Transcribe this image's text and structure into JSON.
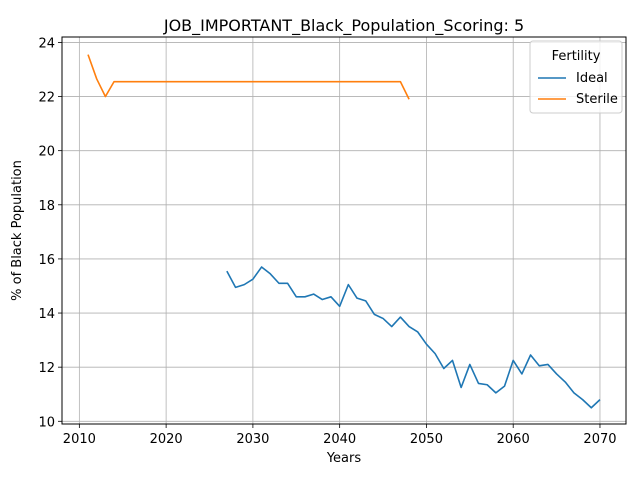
{
  "chart_data": {
    "type": "line",
    "title": "JOB_IMPORTANT_Black_Population_Scoring: 5",
    "xlabel": "Years",
    "ylabel": "% of Black Population",
    "xlim": [
      2008,
      2073
    ],
    "ylim": [
      9.9,
      24.2
    ],
    "xticks": [
      2010,
      2020,
      2030,
      2040,
      2050,
      2060,
      2070
    ],
    "yticks": [
      10,
      12,
      14,
      16,
      18,
      20,
      22,
      24
    ],
    "grid": true,
    "legend": {
      "title": "Fertility",
      "placement": "top-right"
    },
    "series": [
      {
        "name": "Ideal",
        "color": "#1f77b4",
        "x": [
          2027,
          2028,
          2029,
          2030,
          2031,
          2032,
          2033,
          2034,
          2035,
          2036,
          2037,
          2038,
          2039,
          2040,
          2041,
          2042,
          2043,
          2044,
          2045,
          2046,
          2047,
          2048,
          2049,
          2050,
          2051,
          2052,
          2053,
          2054,
          2055,
          2056,
          2057,
          2058,
          2059,
          2060,
          2061,
          2062,
          2063,
          2064,
          2065,
          2066,
          2067,
          2068,
          2069,
          2070
        ],
        "y": [
          15.55,
          14.95,
          15.05,
          15.25,
          15.7,
          15.45,
          15.1,
          15.1,
          14.6,
          14.6,
          14.7,
          14.5,
          14.6,
          14.25,
          15.05,
          14.55,
          14.45,
          13.95,
          13.8,
          13.5,
          13.85,
          13.5,
          13.3,
          12.85,
          12.5,
          11.95,
          12.25,
          11.25,
          12.1,
          11.4,
          11.35,
          11.05,
          11.3,
          12.25,
          11.75,
          12.45,
          12.05,
          12.1,
          11.75,
          11.45,
          11.05,
          10.8,
          10.5,
          10.8
        ]
      },
      {
        "name": "Sterile",
        "color": "#ff7f0e",
        "x": [
          2011,
          2012,
          2013,
          2014,
          2015,
          2016,
          2017,
          2018,
          2019,
          2020,
          2021,
          2022,
          2023,
          2024,
          2025,
          2026,
          2027,
          2028,
          2029,
          2030,
          2031,
          2032,
          2033,
          2034,
          2035,
          2036,
          2037,
          2038,
          2039,
          2040,
          2041,
          2042,
          2043,
          2044,
          2045,
          2046,
          2047,
          2048
        ],
        "y": [
          23.55,
          22.65,
          22.0,
          22.55,
          22.55,
          22.55,
          22.55,
          22.55,
          22.55,
          22.55,
          22.55,
          22.55,
          22.55,
          22.55,
          22.55,
          22.55,
          22.55,
          22.55,
          22.55,
          22.55,
          22.55,
          22.55,
          22.55,
          22.55,
          22.55,
          22.55,
          22.55,
          22.55,
          22.55,
          22.55,
          22.55,
          22.55,
          22.55,
          22.55,
          22.55,
          22.55,
          22.55,
          21.9
        ]
      }
    ]
  }
}
